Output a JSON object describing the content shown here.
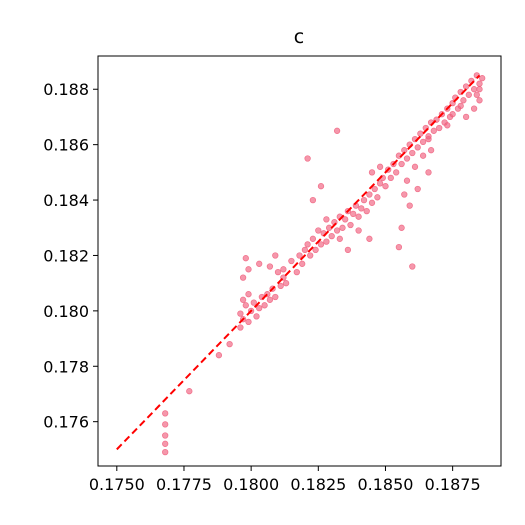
{
  "chart_data": {
    "type": "scatter",
    "title": "c",
    "xlabel": "",
    "ylabel": "",
    "xlim": [
      0.1743,
      0.1893
    ],
    "ylim": [
      0.1744,
      0.1892
    ],
    "x_ticks": [
      0.175,
      0.1775,
      0.18,
      0.1825,
      0.185,
      0.1875
    ],
    "x_tick_labels": [
      "0.1750",
      "0.1775",
      "0.1800",
      "0.1825",
      "0.1850",
      "0.1875"
    ],
    "y_ticks": [
      0.176,
      0.178,
      0.18,
      0.182,
      0.184,
      0.186,
      0.188
    ],
    "y_tick_labels": [
      "0.176",
      "0.178",
      "0.180",
      "0.182",
      "0.184",
      "0.186",
      "0.188"
    ],
    "grid": false,
    "point_color": "#f0607e",
    "reference_line": {
      "style": "dashed",
      "color": "#ff0000",
      "x": [
        0.175,
        0.1885
      ],
      "y": [
        0.175,
        0.1885
      ]
    },
    "points": [
      [
        0.1768,
        0.1763
      ],
      [
        0.1768,
        0.1759
      ],
      [
        0.1768,
        0.1755
      ],
      [
        0.1768,
        0.1752
      ],
      [
        0.1768,
        0.1749
      ],
      [
        0.1777,
        0.1771
      ],
      [
        0.1788,
        0.1784
      ],
      [
        0.1792,
        0.1788
      ],
      [
        0.1796,
        0.1794
      ],
      [
        0.1797,
        0.1797
      ],
      [
        0.1796,
        0.1799
      ],
      [
        0.1798,
        0.1802
      ],
      [
        0.1797,
        0.1804
      ],
      [
        0.1799,
        0.1796
      ],
      [
        0.18,
        0.18
      ],
      [
        0.1801,
        0.1803
      ],
      [
        0.1799,
        0.1806
      ],
      [
        0.1802,
        0.1798
      ],
      [
        0.1803,
        0.1801
      ],
      [
        0.1804,
        0.1805
      ],
      [
        0.1805,
        0.1802
      ],
      [
        0.1806,
        0.1806
      ],
      [
        0.1807,
        0.1804
      ],
      [
        0.1808,
        0.1808
      ],
      [
        0.1809,
        0.1805
      ],
      [
        0.1811,
        0.1809
      ],
      [
        0.1812,
        0.1812
      ],
      [
        0.181,
        0.1814
      ],
      [
        0.1813,
        0.181
      ],
      [
        0.1797,
        0.1812
      ],
      [
        0.1798,
        0.1819
      ],
      [
        0.1799,
        0.1815
      ],
      [
        0.1803,
        0.1817
      ],
      [
        0.1807,
        0.1816
      ],
      [
        0.1809,
        0.182
      ],
      [
        0.1812,
        0.1815
      ],
      [
        0.1815,
        0.1818
      ],
      [
        0.1817,
        0.1814
      ],
      [
        0.1818,
        0.182
      ],
      [
        0.1819,
        0.1817
      ],
      [
        0.182,
        0.1822
      ],
      [
        0.1821,
        0.1824
      ],
      [
        0.1822,
        0.182
      ],
      [
        0.1823,
        0.1826
      ],
      [
        0.1824,
        0.1822
      ],
      [
        0.1825,
        0.1829
      ],
      [
        0.1826,
        0.1824
      ],
      [
        0.1827,
        0.1828
      ],
      [
        0.1828,
        0.1825
      ],
      [
        0.1829,
        0.183
      ],
      [
        0.183,
        0.1827
      ],
      [
        0.1831,
        0.1832
      ],
      [
        0.1832,
        0.1829
      ],
      [
        0.1833,
        0.1834
      ],
      [
        0.1834,
        0.183
      ],
      [
        0.1835,
        0.1833
      ],
      [
        0.1836,
        0.1836
      ],
      [
        0.1837,
        0.1831
      ],
      [
        0.1838,
        0.1835
      ],
      [
        0.1839,
        0.1838
      ],
      [
        0.184,
        0.1834
      ],
      [
        0.1841,
        0.1837
      ],
      [
        0.1842,
        0.184
      ],
      [
        0.1843,
        0.1836
      ],
      [
        0.1844,
        0.1842
      ],
      [
        0.1845,
        0.1839
      ],
      [
        0.1846,
        0.1844
      ],
      [
        0.1847,
        0.1841
      ],
      [
        0.1848,
        0.1846
      ],
      [
        0.1821,
        0.1855
      ],
      [
        0.1823,
        0.184
      ],
      [
        0.1826,
        0.1845
      ],
      [
        0.1828,
        0.1833
      ],
      [
        0.1832,
        0.1865
      ],
      [
        0.1833,
        0.1826
      ],
      [
        0.1836,
        0.1822
      ],
      [
        0.184,
        0.1829
      ],
      [
        0.1844,
        0.1826
      ],
      [
        0.1845,
        0.185
      ],
      [
        0.1848,
        0.1852
      ],
      [
        0.1849,
        0.1848
      ],
      [
        0.185,
        0.1845
      ],
      [
        0.1851,
        0.1851
      ],
      [
        0.1852,
        0.1848
      ],
      [
        0.1853,
        0.1853
      ],
      [
        0.1854,
        0.185
      ],
      [
        0.1855,
        0.1856
      ],
      [
        0.1856,
        0.1853
      ],
      [
        0.1857,
        0.1858
      ],
      [
        0.1858,
        0.1855
      ],
      [
        0.1859,
        0.186
      ],
      [
        0.186,
        0.1857
      ],
      [
        0.1861,
        0.1862
      ],
      [
        0.1862,
        0.1859
      ],
      [
        0.1863,
        0.1864
      ],
      [
        0.1864,
        0.1861
      ],
      [
        0.1865,
        0.1866
      ],
      [
        0.1866,
        0.1863
      ],
      [
        0.1867,
        0.1868
      ],
      [
        0.1868,
        0.1865
      ],
      [
        0.1855,
        0.1823
      ],
      [
        0.1856,
        0.183
      ],
      [
        0.1857,
        0.1842
      ],
      [
        0.1858,
        0.1847
      ],
      [
        0.1859,
        0.1838
      ],
      [
        0.186,
        0.1816
      ],
      [
        0.1861,
        0.1852
      ],
      [
        0.1862,
        0.1844
      ],
      [
        0.1864,
        0.1856
      ],
      [
        0.1866,
        0.185
      ],
      [
        0.1867,
        0.1858
      ],
      [
        0.1869,
        0.1869
      ],
      [
        0.187,
        0.1866
      ],
      [
        0.1871,
        0.1871
      ],
      [
        0.1872,
        0.1868
      ],
      [
        0.1873,
        0.1873
      ],
      [
        0.1874,
        0.187
      ],
      [
        0.1875,
        0.1875
      ],
      [
        0.1876,
        0.1877
      ],
      [
        0.1877,
        0.1873
      ],
      [
        0.1878,
        0.1879
      ],
      [
        0.1879,
        0.1876
      ],
      [
        0.188,
        0.1881
      ],
      [
        0.1881,
        0.1878
      ],
      [
        0.1882,
        0.1883
      ],
      [
        0.1883,
        0.188
      ],
      [
        0.1884,
        0.1885
      ],
      [
        0.1885,
        0.1882
      ],
      [
        0.1884,
        0.1878
      ],
      [
        0.1885,
        0.1876
      ],
      [
        0.1883,
        0.1873
      ],
      [
        0.188,
        0.187
      ],
      [
        0.1878,
        0.1874
      ],
      [
        0.1885,
        0.188
      ],
      [
        0.1886,
        0.1884
      ],
      [
        0.1875,
        0.1871
      ],
      [
        0.1873,
        0.1867
      ],
      [
        0.1866,
        0.1862
      ]
    ]
  }
}
